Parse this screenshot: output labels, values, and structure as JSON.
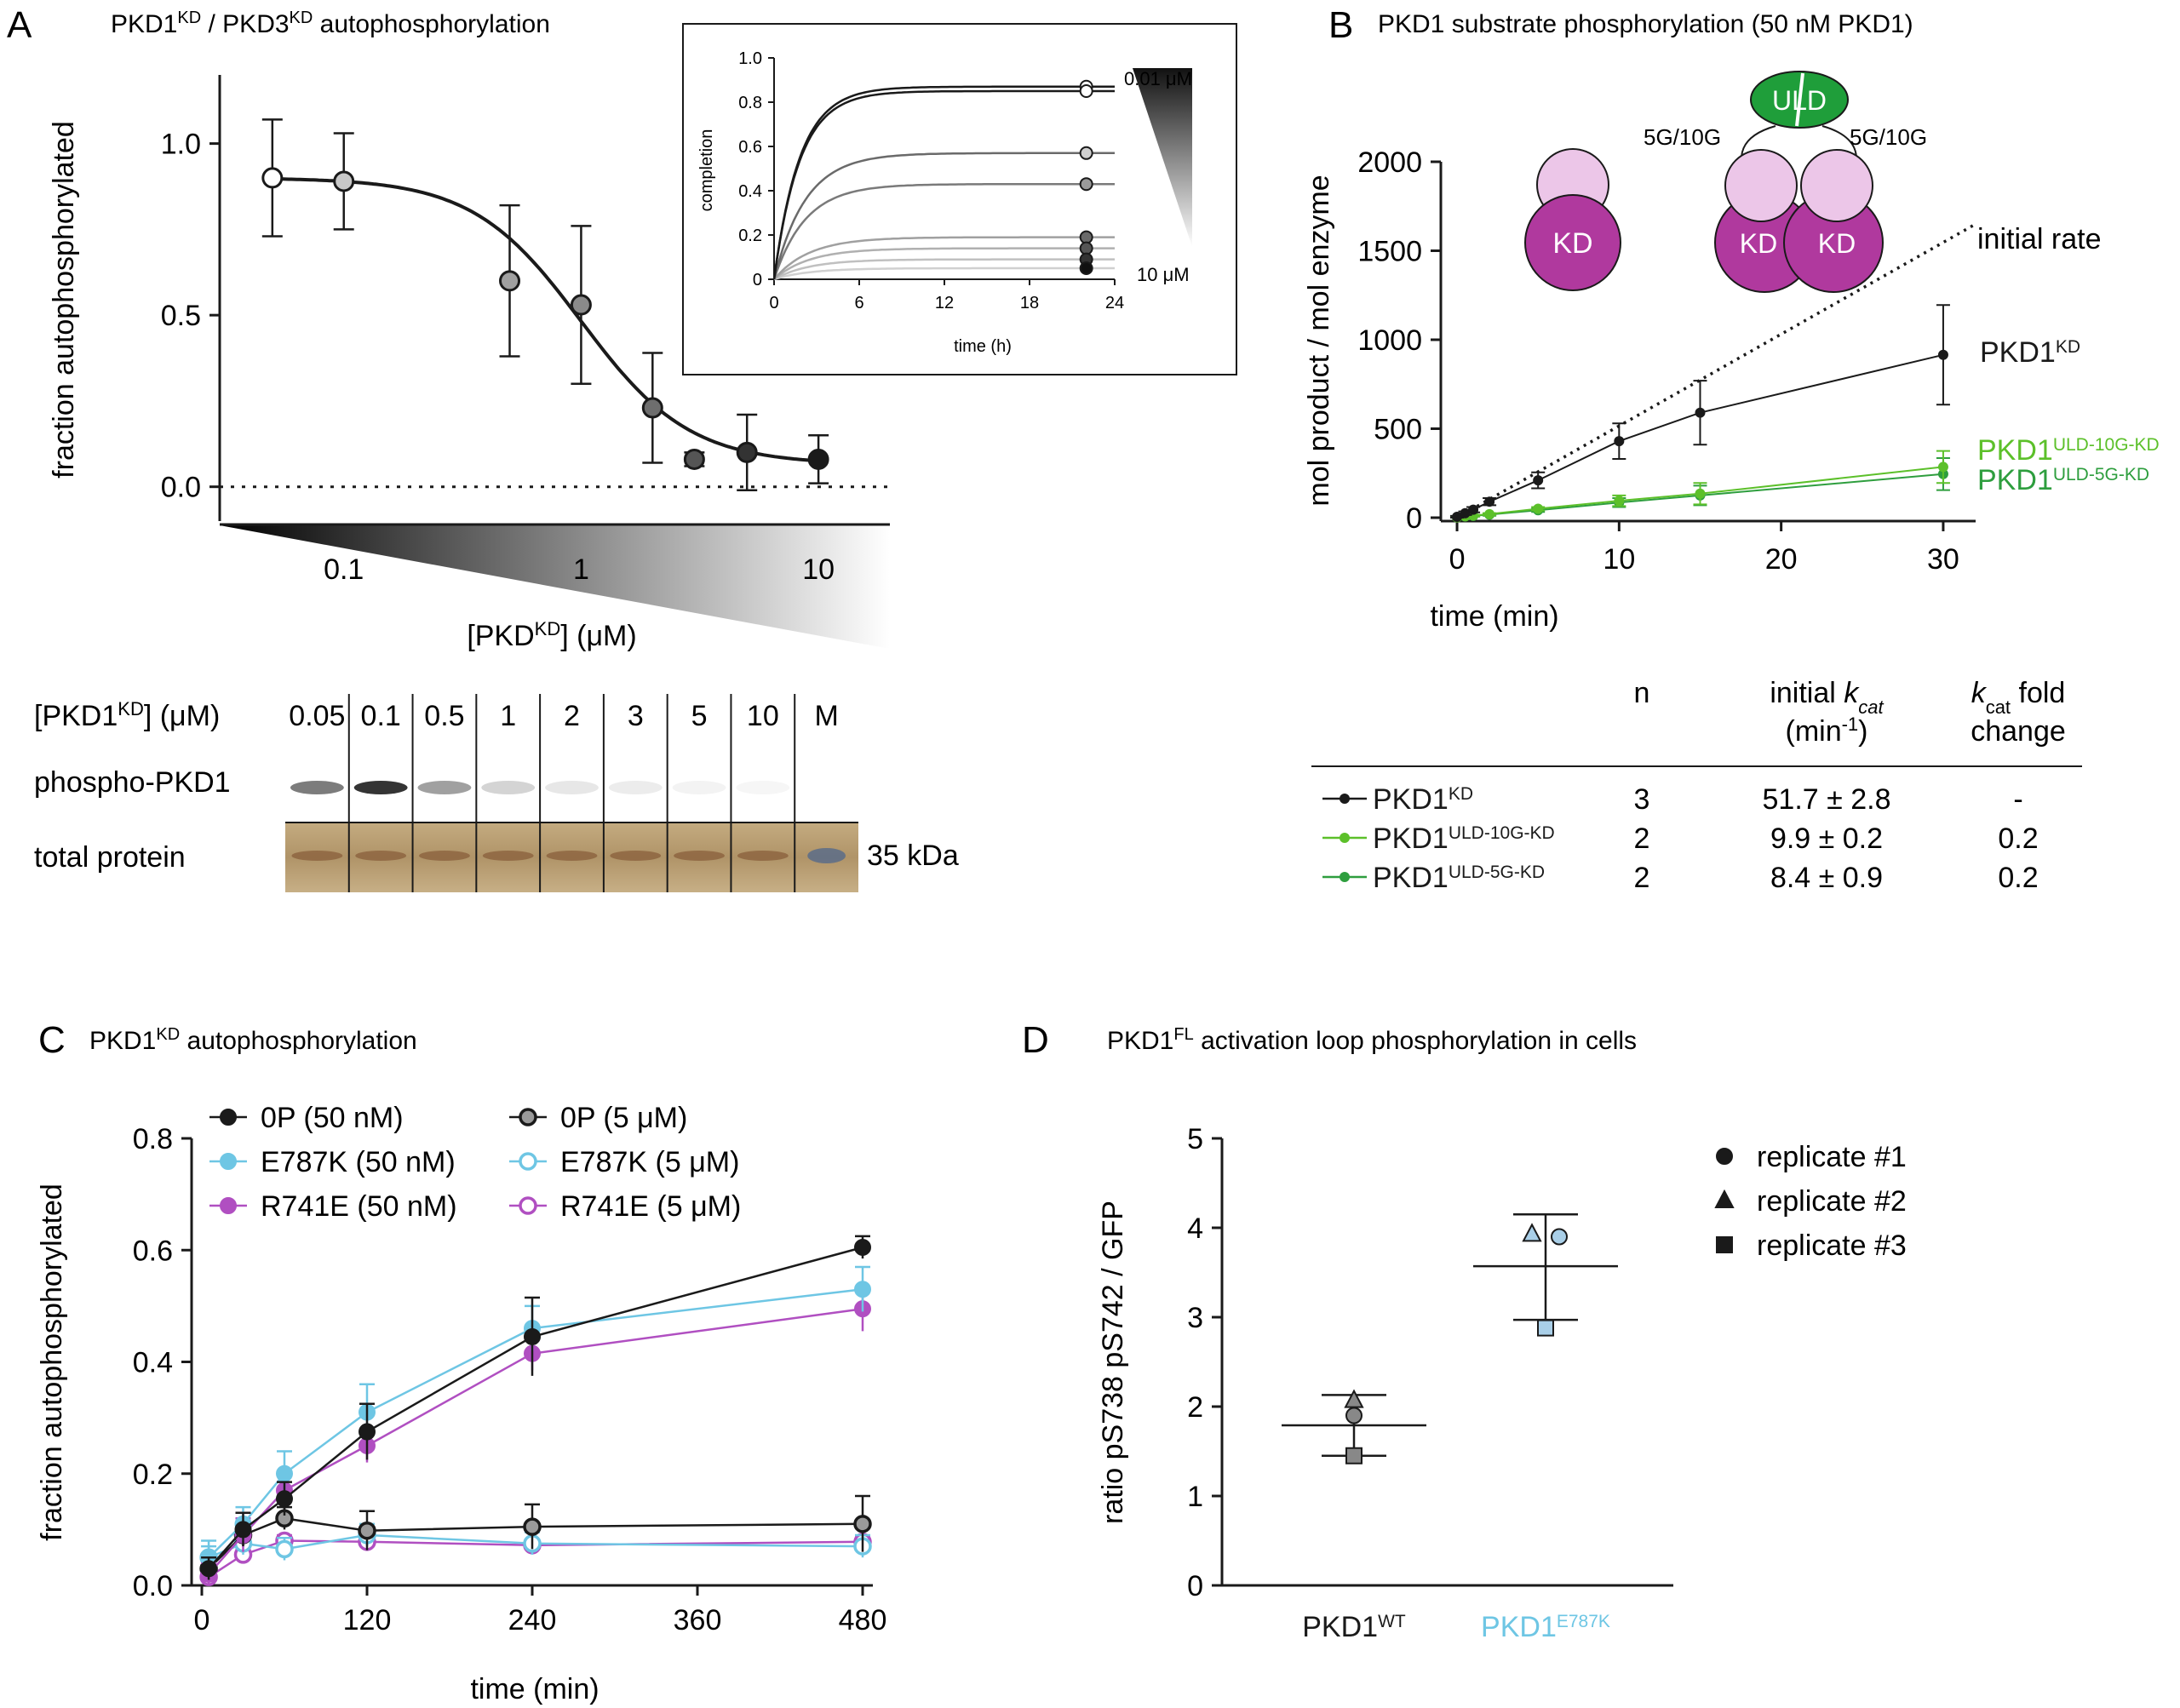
{
  "panels": {
    "A": {
      "letter": "A",
      "title_html": "PKD1<tspan baseline-shift=\"super\" font-size=\"20\">KD</tspan> / PKD3<tspan baseline-shift=\"super\" font-size=\"20\">KD</tspan> autophosphorylation"
    },
    "B": {
      "letter": "B",
      "title": "PKD1 substrate phosphorylation (50 nM PKD1)"
    },
    "C": {
      "letter": "C",
      "title": "autophosphorylation",
      "title_prefix": "PKD1",
      "title_sup": "KD"
    },
    "D": {
      "letter": "D",
      "title": "activation loop phosphorylation in cells",
      "title_prefix": "PKD1",
      "title_sup": "FL"
    }
  },
  "colors": {
    "black": "#1a1a1a",
    "grey_light": "#c8c8c8",
    "grey_mid": "#8a8a8a",
    "grey_dark": "#555555",
    "green_light": "#5cc02a",
    "green": "#2e9e3e",
    "cyan": "#6ec6e4",
    "purple": "#b04fc1",
    "magenta": "#b0399e",
    "pink_light": "#ecc6e8",
    "uld_green": "#1f9e3a",
    "blot_bg": "#b49a6e"
  },
  "chart_data": [
    {
      "id": "A-main",
      "type": "scatter",
      "xlabel": "[PKD^KD] (μM)",
      "ylabel": "fraction autophosphorylated",
      "x_scale": "log",
      "xlim": [
        0.03,
        20
      ],
      "ylim": [
        -0.1,
        1.2
      ],
      "x_ticks": [
        0.1,
        1,
        10
      ],
      "x_tick_labels": [
        "0.1",
        "1",
        "10"
      ],
      "y_ticks": [
        0.0,
        0.5,
        1.0
      ],
      "y_tick_labels": [
        "0.0",
        "0.5",
        "1.0"
      ],
      "points": [
        {
          "x": 0.05,
          "y": 0.9,
          "err": 0.17,
          "fill": "#ffffff"
        },
        {
          "x": 0.1,
          "y": 0.89,
          "err": 0.14,
          "fill": "#c8c8c8"
        },
        {
          "x": 0.5,
          "y": 0.6,
          "err": 0.22,
          "fill": "#a0a0a0"
        },
        {
          "x": 1,
          "y": 0.53,
          "err": 0.23,
          "fill": "#8a8a8a"
        },
        {
          "x": 2,
          "y": 0.23,
          "err": 0.16,
          "fill": "#6e6e6e"
        },
        {
          "x": 3,
          "y": 0.08,
          "err": 0.02,
          "fill": "#555555"
        },
        {
          "x": 5,
          "y": 0.1,
          "err": 0.11,
          "fill": "#333333"
        },
        {
          "x": 10,
          "y": 0.08,
          "err": 0.07,
          "fill": "#1a1a1a"
        }
      ],
      "fit": {
        "top": 0.9,
        "bottom": 0.065,
        "ec50": 1.0,
        "hill": 1.9
      },
      "reference_line": 0.0
    },
    {
      "id": "A-inset",
      "type": "line",
      "xlabel": "time (h)",
      "ylabel": "completion",
      "xlim": [
        0,
        24
      ],
      "ylim": [
        0,
        1.0
      ],
      "x_ticks": [
        0,
        6,
        12,
        18,
        24
      ],
      "y_ticks": [
        0,
        0.2,
        0.4,
        0.6,
        0.8,
        1.0
      ],
      "y_tick_labels": [
        "0",
        "0.2",
        "0.4",
        "0.6",
        "0.8",
        "1.0"
      ],
      "gradient_labels": [
        "0.01 μM",
        "10 μM"
      ],
      "series": [
        {
          "plateau": 0.87,
          "k": 0.55,
          "color": "#1a1a1a",
          "marker_fill": "#ffffff"
        },
        {
          "plateau": 0.85,
          "k": 0.55,
          "color": "#1a1a1a",
          "marker_fill": "#ffffff"
        },
        {
          "plateau": 0.57,
          "k": 0.45,
          "color": "#6a6a6a",
          "marker_fill": "#cfcfcf"
        },
        {
          "plateau": 0.43,
          "k": 0.45,
          "color": "#7a7a7a",
          "marker_fill": "#9a9a9a"
        },
        {
          "plateau": 0.19,
          "k": 0.4,
          "color": "#a0a0a0",
          "marker_fill": "#6a6a6a"
        },
        {
          "plateau": 0.14,
          "k": 0.4,
          "color": "#b0b0b0",
          "marker_fill": "#555555"
        },
        {
          "plateau": 0.09,
          "k": 0.4,
          "color": "#c0c0c0",
          "marker_fill": "#333333"
        },
        {
          "plateau": 0.05,
          "k": 0.4,
          "color": "#d0d0d0",
          "marker_fill": "#111111"
        }
      ],
      "marker_x": 22
    },
    {
      "id": "B-main",
      "type": "line",
      "xlabel": "time (min)",
      "ylabel": "mol product / mol enzyme",
      "xlim": [
        -1,
        32
      ],
      "ylim": [
        0,
        2000
      ],
      "x_ticks": [
        0,
        10,
        20,
        30
      ],
      "y_ticks": [
        0,
        500,
        1000,
        1500,
        2000
      ],
      "y_tick_labels": [
        "0",
        "500",
        "1000",
        "1500",
        "2000"
      ],
      "initial_rate_label": "initial rate",
      "initial_rate_line": {
        "x": [
          0,
          32
        ],
        "y": [
          0,
          1650
        ]
      },
      "series": [
        {
          "name_base": "PKD1",
          "name_sup": "KD",
          "color": "#1a1a1a",
          "x": [
            0,
            0.5,
            1,
            2,
            5,
            10,
            15,
            30
          ],
          "y": [
            5,
            25,
            45,
            90,
            210,
            430,
            590,
            915
          ],
          "err": [
            5,
            10,
            15,
            20,
            45,
            100,
            180,
            280
          ]
        },
        {
          "name_base": "PKD1",
          "name_sup": "ULD-10G-KD",
          "color": "#5cc02a",
          "x": [
            0,
            0.5,
            1,
            2,
            5,
            10,
            15,
            30
          ],
          "y": [
            2,
            8,
            12,
            20,
            50,
            95,
            135,
            285
          ],
          "err": [
            2,
            3,
            4,
            6,
            10,
            30,
            60,
            90
          ]
        },
        {
          "name_base": "PKD1",
          "name_sup": "ULD-5G-KD",
          "color": "#2e9e3e",
          "x": [
            0,
            0.5,
            1,
            2,
            5,
            10,
            15,
            30
          ],
          "y": [
            2,
            7,
            10,
            17,
            42,
            85,
            125,
            245
          ],
          "err": [
            2,
            3,
            4,
            6,
            10,
            25,
            55,
            90
          ]
        }
      ]
    },
    {
      "id": "C-main",
      "type": "line",
      "xlabel": "time (min)",
      "ylabel": "fraction autophosphorylated",
      "xlim": [
        0,
        480
      ],
      "ylim": [
        0,
        0.8
      ],
      "x_ticks": [
        0,
        120,
        240,
        360,
        480
      ],
      "y_ticks": [
        0.0,
        0.2,
        0.4,
        0.6,
        0.8
      ],
      "y_tick_labels": [
        "0.0",
        "0.2",
        "0.4",
        "0.6",
        "0.8"
      ],
      "series": [
        {
          "name": "0P (50 nM)",
          "color": "#1a1a1a",
          "marker": "filled",
          "x": [
            5,
            30,
            60,
            120,
            240,
            480
          ],
          "y": [
            0.03,
            0.1,
            0.155,
            0.275,
            0.445,
            0.605
          ],
          "err": [
            0.02,
            0.03,
            0.03,
            0.05,
            0.07,
            0.02
          ]
        },
        {
          "name": "E787K (50 nM)",
          "color": "#6ec6e4",
          "marker": "filled",
          "x": [
            5,
            30,
            60,
            120,
            240,
            480
          ],
          "y": [
            0.05,
            0.11,
            0.2,
            0.31,
            0.46,
            0.53
          ],
          "err": [
            0.03,
            0.03,
            0.04,
            0.05,
            0.04,
            0.04
          ]
        },
        {
          "name": "R741E (50 nM)",
          "color": "#b04fc1",
          "marker": "filled",
          "x": [
            5,
            30,
            60,
            120,
            240,
            480
          ],
          "y": [
            0.02,
            0.09,
            0.17,
            0.25,
            0.415,
            0.495
          ],
          "err": [
            0.02,
            0.03,
            0.03,
            0.03,
            0.03,
            0.04
          ]
        },
        {
          "name": "0P (5 μM)",
          "color": "#1a1a1a",
          "marker": "open_grey",
          "x": [
            5,
            30,
            60,
            120,
            240,
            480
          ],
          "y": [
            0.03,
            0.09,
            0.12,
            0.098,
            0.105,
            0.11
          ],
          "err": [
            0.02,
            0.02,
            0.02,
            0.035,
            0.04,
            0.05
          ]
        },
        {
          "name": "E787K (5 μM)",
          "color": "#6ec6e4",
          "marker": "open",
          "x": [
            5,
            30,
            60,
            120,
            240,
            480
          ],
          "y": [
            0.05,
            0.075,
            0.065,
            0.09,
            0.075,
            0.07
          ],
          "err": [
            0.02,
            0.02,
            0.02,
            0.02,
            0.02,
            0.02
          ]
        },
        {
          "name": "R741E (5 μM)",
          "color": "#b04fc1",
          "marker": "open",
          "x": [
            5,
            30,
            60,
            120,
            240,
            480
          ],
          "y": [
            0.015,
            0.055,
            0.08,
            0.078,
            0.072,
            0.078
          ],
          "err": [
            0.01,
            0.01,
            0.01,
            0.01,
            0.01,
            0.01
          ]
        }
      ]
    },
    {
      "id": "D-main",
      "type": "scatter",
      "xlabel": "",
      "ylabel": "ratio pS738 pS742 / GFP",
      "ylim": [
        0,
        5
      ],
      "y_ticks": [
        0,
        1,
        2,
        3,
        4,
        5
      ],
      "y_tick_labels": [
        "0",
        "1",
        "2",
        "3",
        "4",
        "5"
      ],
      "legend": [
        {
          "label": "replicate #1",
          "shape": "circle"
        },
        {
          "label": "replicate #2",
          "shape": "triangle"
        },
        {
          "label": "replicate #3",
          "shape": "square"
        }
      ],
      "groups": [
        {
          "name_base": "PKD1",
          "name_sup": "WT",
          "label_color": "#1a1a1a",
          "fill": "#888888",
          "mean": 1.79,
          "sd_low": 1.45,
          "sd_high": 2.13,
          "points": [
            {
              "shape": "circle",
              "y": 1.9
            },
            {
              "shape": "triangle",
              "y": 2.07
            },
            {
              "shape": "square",
              "y": 1.45
            }
          ]
        },
        {
          "name_base": "PKD1",
          "name_sup": "E787K",
          "label_color": "#6ec6e4",
          "fill": "#a9cfe8",
          "mean": 3.57,
          "sd_low": 2.97,
          "sd_high": 4.15,
          "points": [
            {
              "shape": "circle",
              "y": 3.9
            },
            {
              "shape": "triangle",
              "y": 3.93
            },
            {
              "shape": "square",
              "y": 2.88
            }
          ]
        }
      ]
    }
  ],
  "A_axis_label": {
    "base": "[PKD",
    "sup": "KD",
    "tail": "] (μM)"
  },
  "blot": {
    "header_label": "[PKD1",
    "header_sup": "KD",
    "header_tail": "] (μM)",
    "lanes": [
      "0.05",
      "0.1",
      "0.5",
      "1",
      "2",
      "3",
      "5",
      "10",
      "M"
    ],
    "row1_label": "phospho-PKD1",
    "row2_label": "total protein",
    "size_label": "35 kDa",
    "phospho_intensity": [
      0.55,
      0.85,
      0.4,
      0.18,
      0.1,
      0.08,
      0.05,
      0.04,
      0
    ]
  },
  "schematic_B": {
    "kd_label": "KD",
    "uld_label": "ULD",
    "linker_left": "5G/10G",
    "linker_right": "5G/10G"
  },
  "table_B": {
    "headers": {
      "n": "n",
      "kcat_line1": "initial",
      "kcat_k": "k",
      "kcat_sub": "cat",
      "kcat_line2": "(min",
      "kcat_unit_sup": "-1",
      "kcat_close": ")",
      "fold_k": "k",
      "fold_sub": "cat",
      "fold_tail": " fold",
      "fold_line2": "change"
    },
    "rows": [
      {
        "label_base": "PKD1",
        "label_sup": "KD",
        "color": "#1a1a1a",
        "n": "3",
        "kcat": "51.7 ± 2.8",
        "fold": "-"
      },
      {
        "label_base": "PKD1",
        "label_sup": "ULD-10G-KD",
        "color": "#5cc02a",
        "n": "2",
        "kcat": "9.9 ± 0.2",
        "fold": "0.2"
      },
      {
        "label_base": "PKD1",
        "label_sup": "ULD-5G-KD",
        "color": "#2e9e3e",
        "n": "2",
        "kcat": "8.4 ± 0.9",
        "fold": "0.2"
      }
    ]
  }
}
